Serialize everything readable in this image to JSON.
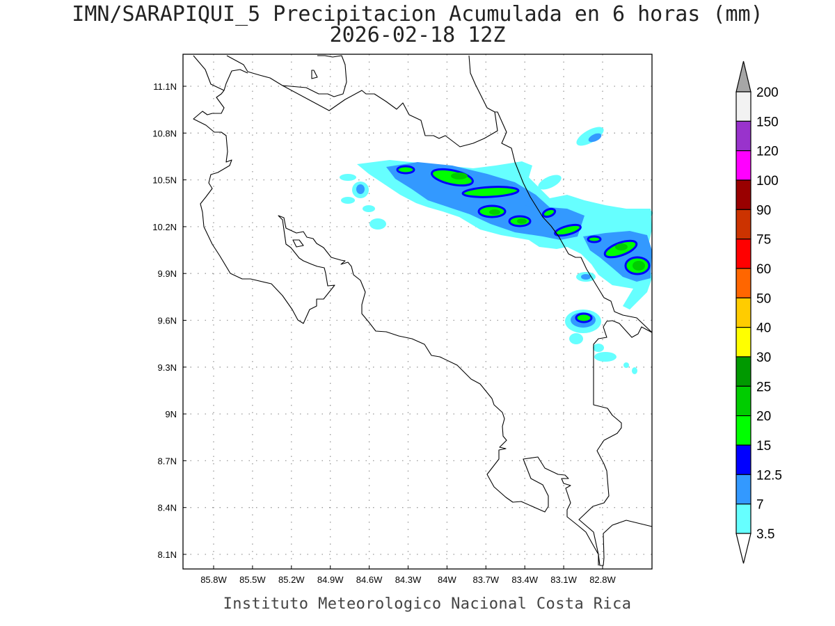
{
  "title": {
    "line1": "IMN/SARAPIQUI_5 Precipitacion Acumulada en 6 horas (mm)",
    "line2": "2026-02-18 12Z"
  },
  "footer": "Instituto Meteorologico Nacional Costa Rica",
  "map": {
    "lon_ticks": [
      "85.8W",
      "85.5W",
      "85.2W",
      "84.9W",
      "84.6W",
      "84.3W",
      "84W",
      "83.7W",
      "83.4W",
      "83.1W",
      "82.8W"
    ],
    "lat_ticks": [
      "11.1N",
      "10.8N",
      "10.5N",
      "10.2N",
      "9.9N",
      "9.6N",
      "9.3N",
      "9N",
      "8.7N",
      "8.4N",
      "8.1N"
    ],
    "lon_range": [
      -86.04,
      -82.42
    ],
    "lat_range": [
      8.01,
      11.3
    ]
  },
  "colorbar": {
    "labels": [
      "200",
      "150",
      "120",
      "100",
      "90",
      "75",
      "60",
      "50",
      "40",
      "30",
      "25",
      "20",
      "15",
      "12.5",
      "7",
      "3.5"
    ],
    "colors": [
      "#f2f2f2",
      "#9933cc",
      "#ff00ff",
      "#990000",
      "#cc3300",
      "#ff0000",
      "#ff6600",
      "#ffcc00",
      "#ffff00",
      "#009900",
      "#00cc00",
      "#00ff00",
      "#0000ff",
      "#3399ff",
      "#66ffff"
    ],
    "over_color": "#a6a6a6",
    "under_color": "#ffffff"
  }
}
